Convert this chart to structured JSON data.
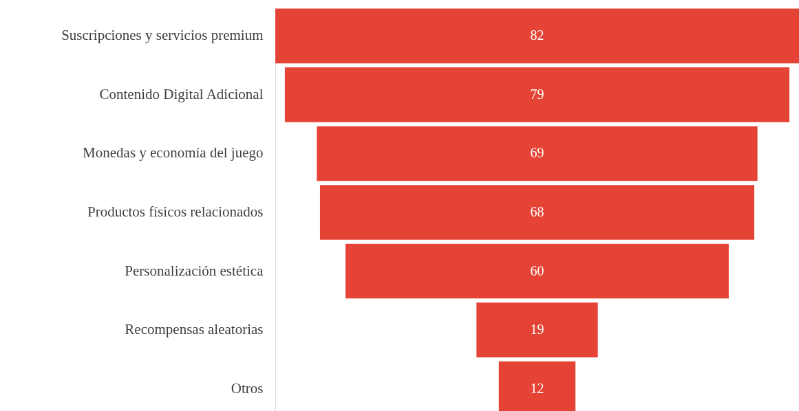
{
  "chart_data": {
    "type": "other",
    "categories": [
      "Suscripciones y servicios premium",
      "Contenido Digital  Adicional",
      "Monedas y economía del juego",
      "Productos físicos relacionados",
      "Personalización  estética",
      "Recompensas aleatorias",
      "Otros"
    ],
    "values": [
      82,
      79,
      69,
      68,
      60,
      19,
      12
    ],
    "color": "#e54335",
    "data_labels": true
  }
}
